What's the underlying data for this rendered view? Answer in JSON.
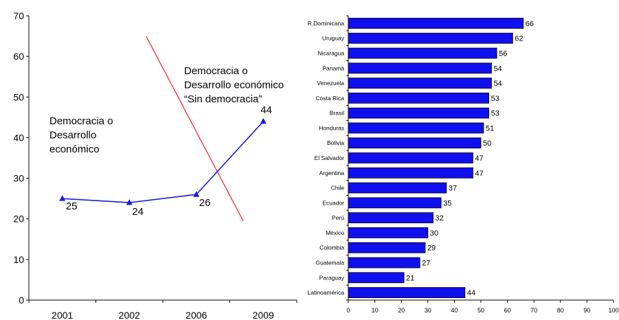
{
  "chart_data": [
    {
      "type": "line",
      "categories": [
        "2001",
        "2002",
        "2006",
        "2009"
      ],
      "x_positions": [
        0.5,
        1.5,
        2.5,
        3.5
      ],
      "series": [
        {
          "values": [
            25,
            24,
            26,
            44
          ],
          "color": "#1a1ae6"
        }
      ],
      "data_labels": [
        "25",
        "24",
        "26",
        "44"
      ],
      "ylim": [
        0,
        70
      ],
      "yticks": [
        0,
        10,
        20,
        30,
        40,
        50,
        60,
        70
      ],
      "grid": false,
      "divider": {
        "x": [
          1.75,
          3.2
        ],
        "y": [
          65,
          19.5
        ],
        "color": "#ff2a2a"
      },
      "annotations": [
        {
          "lines": [
            "Democracia o",
            "Desarrollo",
            "económico"
          ]
        },
        {
          "lines": [
            "Democracia o",
            "Desarrollo económico",
            "“Sin democracia”"
          ]
        }
      ]
    },
    {
      "type": "bar",
      "orientation": "horizontal",
      "categories": [
        "R.Dominicana",
        "Uruguay",
        "Nicaragua",
        "Panamá",
        "Venezuela",
        "Costa Rica",
        "Brasil",
        "Honduras",
        "Bolivia",
        "El Salvador",
        "Argentina",
        "Chile",
        "Ecuador",
        "Perú",
        "México",
        "Colombia",
        "Guatemala",
        "Paraguay",
        "Latinoamérica"
      ],
      "values": [
        66,
        62,
        56,
        54,
        54,
        53,
        53,
        51,
        50,
        47,
        47,
        37,
        35,
        32,
        30,
        29,
        27,
        21,
        44
      ],
      "xlim": [
        0,
        100
      ],
      "xticks": [
        0,
        10,
        20,
        30,
        40,
        50,
        60,
        70,
        80,
        90,
        100
      ],
      "bar_color": "#1010ee",
      "grid": false
    }
  ]
}
